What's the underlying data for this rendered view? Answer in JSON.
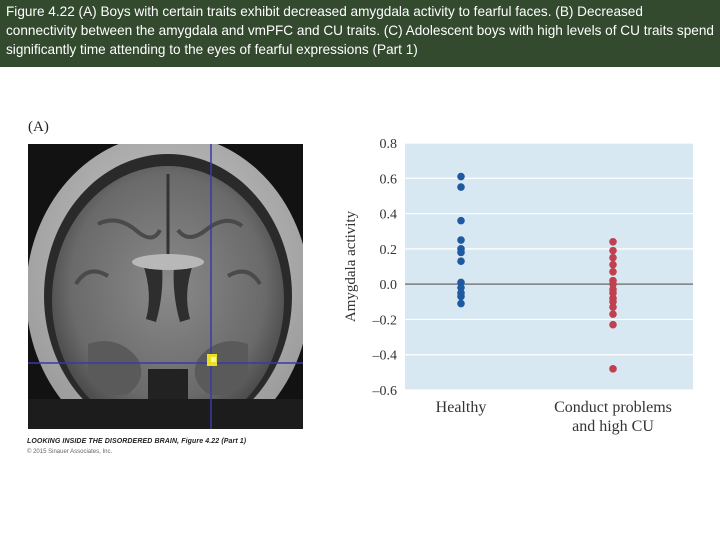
{
  "header": {
    "caption": "Figure 4.22 (A) Boys with certain traits exhibit decreased amygdala activity to fearful faces. (B) Decreased connectivity between the amygdala and vmPFC and CU traits. (C) Adolescent boys with high levels of CU traits spend significantly time attending to the eyes of fearful expressions (Part 1)"
  },
  "panel": {
    "label": "(A)"
  },
  "figure": {
    "caption": "LOOKING INSIDE THE DISORDERED BRAIN, Figure 4.22 (Part 1)",
    "copyright": "© 2015 Sinauer Associates, Inc."
  },
  "colors": {
    "header_bg": "#334a2f",
    "plot_bg": "#d8e8f3",
    "healthy": "#1f5aa0",
    "conduct": "#c0404f",
    "crosshair": "#3a3aa8",
    "activation": "#e8e020"
  },
  "chart_data": {
    "type": "scatter",
    "ylabel": "Amygdala activity",
    "ylim": [
      -0.6,
      0.8
    ],
    "yticks": [
      "0.8",
      "0.6",
      "0.4",
      "0.2",
      "0.0",
      "–0.2",
      "–0.4",
      "–0.6"
    ],
    "ytick_values": [
      0.8,
      0.6,
      0.4,
      0.2,
      0.0,
      -0.2,
      -0.4,
      -0.6
    ],
    "grid": true,
    "categories": [
      {
        "lines": [
          "Healthy"
        ]
      },
      {
        "lines": [
          "Conduct problems",
          "and high CU"
        ]
      }
    ],
    "series": [
      {
        "category": 0,
        "color": "#1f5aa0",
        "values": [
          0.61,
          0.55,
          0.36,
          0.25,
          0.2,
          0.18,
          0.13,
          0.01,
          -0.02,
          -0.05,
          -0.07,
          -0.11
        ]
      },
      {
        "category": 1,
        "color": "#c0404f",
        "values": [
          0.24,
          0.19,
          0.15,
          0.11,
          0.07,
          0.02,
          0.0,
          -0.03,
          -0.05,
          -0.08,
          -0.1,
          -0.13,
          -0.17,
          -0.23,
          -0.48
        ]
      }
    ]
  }
}
